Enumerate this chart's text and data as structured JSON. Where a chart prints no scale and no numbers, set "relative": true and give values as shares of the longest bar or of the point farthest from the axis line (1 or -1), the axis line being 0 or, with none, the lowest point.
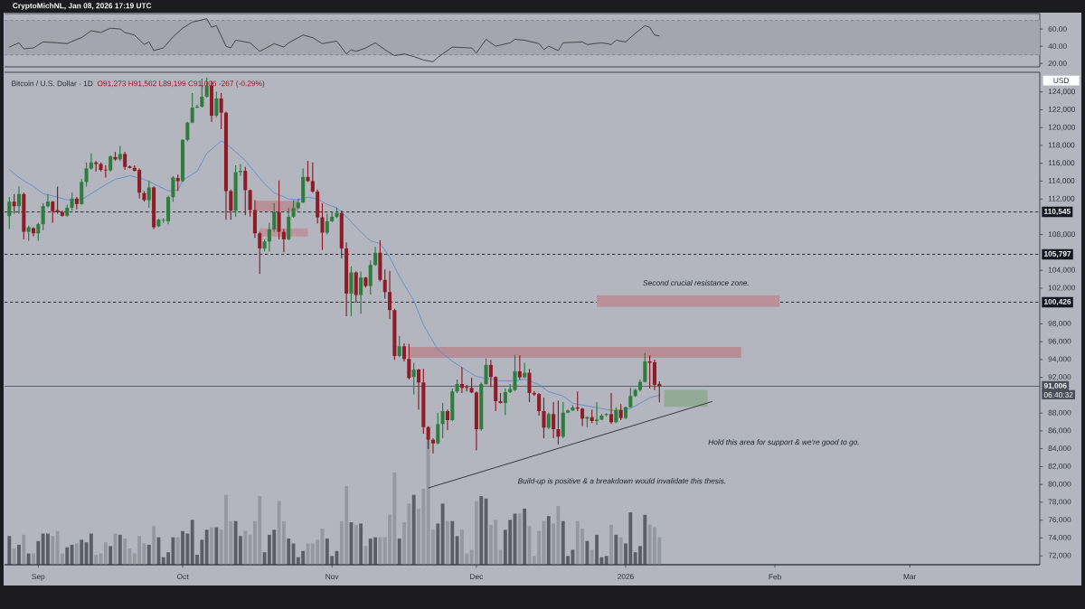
{
  "chart_data": [
    {
      "type": "line",
      "title": "CryptoMichNL, Jan 08, 2026 17:19 UTC",
      "x": [
        "2025-08-26",
        "2025-08-28",
        "2025-08-29",
        "2025-08-31",
        "2025-09-02",
        "2025-09-05",
        "2025-09-07",
        "2025-09-09",
        "2025-09-10",
        "2025-09-12",
        "2025-09-14",
        "2025-09-16",
        "2025-09-18",
        "2025-09-19",
        "2025-09-21",
        "2025-09-23",
        "2025-09-24",
        "2025-09-25",
        "2025-09-27",
        "2025-09-29",
        "2025-10-01",
        "2025-10-03",
        "2025-10-06",
        "2025-10-07",
        "2025-10-08",
        "2025-10-10",
        "2025-10-11",
        "2025-10-12",
        "2025-10-15",
        "2025-10-17",
        "2025-10-20",
        "2025-10-22",
        "2025-10-23",
        "2025-10-26",
        "2025-10-28",
        "2025-10-30",
        "2025-11-02",
        "2025-11-04",
        "2025-11-05",
        "2025-11-06",
        "2025-11-08",
        "2025-11-10",
        "2025-11-12",
        "2025-11-14",
        "2025-11-16",
        "2025-11-18",
        "2025-11-20",
        "2025-11-22",
        "2025-11-23",
        "2025-11-24",
        "2025-11-26",
        "2025-11-30",
        "2025-12-01",
        "2025-12-03",
        "2025-12-05",
        "2025-12-08",
        "2025-12-09",
        "2025-12-11",
        "2025-12-14",
        "2025-12-15",
        "2025-12-16",
        "2025-12-18",
        "2025-12-19",
        "2025-12-23",
        "2025-12-24",
        "2025-12-27",
        "2025-12-29",
        "2025-12-30",
        "2026-01-01",
        "2026-01-03",
        "2026-01-05",
        "2026-01-06",
        "2026-01-07",
        "2026-01-08"
      ],
      "values": [
        39,
        44,
        37,
        38,
        45,
        44,
        43,
        48,
        50,
        58,
        56,
        61,
        60,
        56,
        53,
        42,
        45,
        35,
        38,
        51,
        61,
        68,
        72,
        62,
        64,
        40,
        38,
        47,
        44,
        34,
        43,
        39,
        44,
        53,
        50,
        43,
        46,
        31,
        36,
        34,
        38,
        44,
        36,
        29,
        31,
        28,
        24,
        22,
        27,
        31,
        39,
        38,
        32,
        48,
        40,
        44,
        48,
        47,
        43,
        36,
        40,
        35,
        44,
        45,
        42,
        44,
        42,
        47,
        45,
        55,
        64,
        62,
        53,
        52
      ],
      "color": "#3b3d44",
      "xlim": [
        "2025-08-25",
        "2026-03-28"
      ],
      "ylim": [
        16,
        78
      ],
      "yticks": [
        {
          "value": 20,
          "label": "20.00"
        },
        {
          "value": 40,
          "label": "40.00"
        },
        {
          "value": 60,
          "label": "60.00"
        }
      ],
      "tick_labels": "y",
      "bands": [
        {
          "axis": "y",
          "from": 30,
          "to": 70,
          "color": "#a3a6ae"
        }
      ],
      "ref_lines": [
        {
          "axis": "y",
          "value": 70,
          "color": "#7d808a",
          "line_style": "dashed"
        },
        {
          "axis": "y",
          "value": 30,
          "color": "#7d808a",
          "line_style": "dashed"
        }
      ]
    },
    {
      "type": "candlestick",
      "title": "Bitcoin / U.S. Dollar · 1D",
      "subtitle": "O91,273 H91,562 L89,199 C91,006 -267 (-0.29%)",
      "ylabel": "USD",
      "x": [
        "2025-08-26",
        "2025-08-27",
        "2025-08-28",
        "2025-08-29",
        "2025-08-30",
        "2025-08-31",
        "2025-09-01",
        "2025-09-02",
        "2025-09-03",
        "2025-09-04",
        "2025-09-05",
        "2025-09-06",
        "2025-09-07",
        "2025-09-08",
        "2025-09-09",
        "2025-09-10",
        "2025-09-11",
        "2025-09-12",
        "2025-09-13",
        "2025-09-14",
        "2025-09-15",
        "2025-09-16",
        "2025-09-17",
        "2025-09-18",
        "2025-09-19",
        "2025-09-20",
        "2025-09-21",
        "2025-09-22",
        "2025-09-23",
        "2025-09-24",
        "2025-09-25",
        "2025-09-26",
        "2025-09-27",
        "2025-09-28",
        "2025-09-29",
        "2025-09-30",
        "2025-10-01",
        "2025-10-02",
        "2025-10-03",
        "2025-10-04",
        "2025-10-05",
        "2025-10-06",
        "2025-10-07",
        "2025-10-08",
        "2025-10-09",
        "2025-10-10",
        "2025-10-11",
        "2025-10-12",
        "2025-10-13",
        "2025-10-14",
        "2025-10-15",
        "2025-10-16",
        "2025-10-17",
        "2025-10-18",
        "2025-10-19",
        "2025-10-20",
        "2025-10-21",
        "2025-10-22",
        "2025-10-23",
        "2025-10-24",
        "2025-10-25",
        "2025-10-26",
        "2025-10-27",
        "2025-10-28",
        "2025-10-29",
        "2025-10-30",
        "2025-10-31",
        "2025-11-01",
        "2025-11-02",
        "2025-11-03",
        "2025-11-04",
        "2025-11-05",
        "2025-11-06",
        "2025-11-07",
        "2025-11-08",
        "2025-11-09",
        "2025-11-10",
        "2025-11-11",
        "2025-11-12",
        "2025-11-13",
        "2025-11-14",
        "2025-11-15",
        "2025-11-16",
        "2025-11-17",
        "2025-11-18",
        "2025-11-19",
        "2025-11-20",
        "2025-11-21",
        "2025-11-22",
        "2025-11-23",
        "2025-11-24",
        "2025-11-25",
        "2025-11-26",
        "2025-11-27",
        "2025-11-28",
        "2025-11-29",
        "2025-11-30",
        "2025-12-01",
        "2025-12-02",
        "2025-12-03",
        "2025-12-04",
        "2025-12-05",
        "2025-12-06",
        "2025-12-07",
        "2025-12-08",
        "2025-12-09",
        "2025-12-10",
        "2025-12-11",
        "2025-12-12",
        "2025-12-13",
        "2025-12-14",
        "2025-12-15",
        "2025-12-16",
        "2025-12-17",
        "2025-12-18",
        "2025-12-19",
        "2025-12-20",
        "2025-12-21",
        "2025-12-22",
        "2025-12-23",
        "2025-12-24",
        "2025-12-25",
        "2025-12-26",
        "2025-12-27",
        "2025-12-28",
        "2025-12-29",
        "2025-12-30",
        "2025-12-31",
        "2026-01-01",
        "2026-01-02",
        "2026-01-03",
        "2026-01-04",
        "2026-01-05",
        "2026-01-06",
        "2026-01-07",
        "2026-01-08"
      ],
      "ohlc": [
        [
          110080,
          112210,
          108660,
          111700
        ],
        [
          111700,
          112550,
          110350,
          111190
        ],
        [
          111190,
          113390,
          110350,
          112550
        ],
        [
          112550,
          112700,
          107480,
          108320
        ],
        [
          108320,
          109000,
          107310,
          108830
        ],
        [
          108730,
          108830,
          107810,
          108150
        ],
        [
          108150,
          109340,
          107310,
          109170
        ],
        [
          109170,
          111530,
          108490,
          111190
        ],
        [
          111190,
          112550,
          111020,
          111700
        ],
        [
          111700,
          111800,
          109340,
          110620
        ],
        [
          110750,
          113390,
          110350,
          110520
        ],
        [
          110520,
          110690,
          110010,
          110110
        ],
        [
          110110,
          111360,
          110010,
          111020
        ],
        [
          111020,
          112710,
          110690,
          112040
        ],
        [
          112040,
          112210,
          110860,
          111430
        ],
        [
          111430,
          114240,
          111360,
          113900
        ],
        [
          113900,
          116090,
          113390,
          115420
        ],
        [
          115420,
          117110,
          115250,
          116090
        ],
        [
          116090,
          116260,
          115080,
          115920
        ],
        [
          115920,
          116090,
          115080,
          115250
        ],
        [
          115280,
          115760,
          114400,
          115210
        ],
        [
          115210,
          116900,
          115080,
          116770
        ],
        [
          116700,
          117280,
          116260,
          116430
        ],
        [
          116430,
          117950,
          116260,
          117040
        ],
        [
          117040,
          117280,
          115250,
          115590
        ],
        [
          115650,
          115760,
          115420,
          115490
        ],
        [
          115490,
          115760,
          115080,
          115150
        ],
        [
          115250,
          115420,
          112040,
          112710
        ],
        [
          112650,
          112880,
          111700,
          111870
        ],
        [
          111870,
          114070,
          111020,
          113290
        ],
        [
          113290,
          113400,
          108590,
          108830
        ],
        [
          108930,
          109800,
          108830,
          109670
        ],
        [
          109610,
          109840,
          109340,
          109670
        ],
        [
          109500,
          112380,
          109170,
          112210
        ],
        [
          112210,
          114570,
          111700,
          114400
        ],
        [
          114340,
          114740,
          112880,
          114000
        ],
        [
          114000,
          118700,
          113900,
          118630
        ],
        [
          118630,
          120650,
          118460,
          120550
        ],
        [
          120550,
          123870,
          120490,
          122240
        ],
        [
          122240,
          122580,
          122180,
          122340
        ],
        [
          122340,
          125490,
          122240,
          123460
        ],
        [
          123460,
          125620,
          123360,
          124710
        ],
        [
          124710,
          125220,
          120650,
          121330
        ],
        [
          121330,
          124030,
          121160,
          123260
        ],
        [
          123260,
          123870,
          119810,
          121670
        ],
        [
          121670,
          121800,
          109670,
          112880
        ],
        [
          112880,
          113050,
          109670,
          110690
        ],
        [
          110690,
          115760,
          110010,
          115010
        ],
        [
          115010,
          115930,
          114570,
          115150
        ],
        [
          115150,
          115590,
          110180,
          112990
        ],
        [
          112990,
          113050,
          110010,
          110760
        ],
        [
          110760,
          111870,
          107650,
          108150
        ],
        [
          108150,
          108320,
          103590,
          106460
        ],
        [
          106460,
          107480,
          106130,
          107240
        ],
        [
          107240,
          109340,
          106130,
          108590
        ],
        [
          108590,
          111530,
          108320,
          110520
        ],
        [
          110520,
          114070,
          107480,
          108320
        ],
        [
          108320,
          108660,
          106020,
          107480
        ],
        [
          107480,
          111030,
          107380,
          110010
        ],
        [
          110010,
          111870,
          109900,
          110960
        ],
        [
          110960,
          112040,
          110860,
          111600
        ],
        [
          111600,
          115420,
          111530,
          114470
        ],
        [
          114470,
          116260,
          113900,
          114000
        ],
        [
          114000,
          116090,
          112710,
          112820
        ],
        [
          112820,
          113050,
          109270,
          109940
        ],
        [
          109940,
          111530,
          106290,
          108220
        ],
        [
          108220,
          110350,
          108050,
          109500
        ],
        [
          109500,
          110520,
          109400,
          110010
        ],
        [
          110010,
          111030,
          109840,
          110420
        ],
        [
          110420,
          110690,
          105350,
          106460
        ],
        [
          106460,
          107140,
          98860,
          101400
        ],
        [
          101400,
          104440,
          98860,
          103760
        ],
        [
          103760,
          103900,
          100380,
          101230
        ],
        [
          101230,
          103860,
          99130,
          103190
        ],
        [
          103190,
          103260,
          102070,
          102240
        ],
        [
          102240,
          105110,
          101290,
          104600
        ],
        [
          104600,
          106630,
          104500,
          105960
        ],
        [
          105960,
          107380,
          102750,
          102920
        ],
        [
          102920,
          104100,
          100820,
          101560
        ],
        [
          101560,
          103930,
          98520,
          99540
        ],
        [
          99540,
          99700,
          93960,
          94400
        ],
        [
          94400,
          96660,
          94300,
          95480
        ],
        [
          95480,
          95820,
          93790,
          94060
        ],
        [
          94060,
          95750,
          91770,
          91930
        ],
        [
          92040,
          93630,
          90080,
          92880
        ],
        [
          92880,
          92950,
          88390,
          91430
        ],
        [
          91430,
          92950,
          85680,
          86430
        ],
        [
          86430,
          86530,
          84000,
          85010
        ],
        [
          85010,
          85180,
          83490,
          84600
        ],
        [
          84600,
          88050,
          84500,
          86770
        ],
        [
          86770,
          89130,
          85180,
          88220
        ],
        [
          88220,
          88390,
          86090,
          87210
        ],
        [
          87210,
          90750,
          87100,
          90420
        ],
        [
          90420,
          91770,
          90250,
          91260
        ],
        [
          91260,
          93120,
          90250,
          90820
        ],
        [
          90920,
          91160,
          90420,
          90820
        ],
        [
          90820,
          91940,
          90250,
          90310
        ],
        [
          90310,
          90420,
          83830,
          86190
        ],
        [
          86190,
          91430,
          86020,
          91260
        ],
        [
          91260,
          94130,
          91160,
          93390
        ],
        [
          93390,
          93960,
          90920,
          92040
        ],
        [
          92040,
          92110,
          88220,
          89330
        ],
        [
          89330,
          90250,
          89060,
          89130
        ],
        [
          89130,
          90750,
          87780,
          90350
        ],
        [
          90350,
          91260,
          90250,
          90690
        ],
        [
          90580,
          94540,
          90480,
          92680
        ],
        [
          92680,
          94470,
          91770,
          92000
        ],
        [
          92000,
          93630,
          91940,
          92510
        ],
        [
          92510,
          92950,
          89230,
          90250
        ],
        [
          90250,
          90480,
          89910,
          90080
        ],
        [
          90140,
          90250,
          87710,
          88220
        ],
        [
          88220,
          89740,
          85180,
          86360
        ],
        [
          86360,
          88050,
          86190,
          87880
        ],
        [
          87880,
          89230,
          85180,
          86190
        ],
        [
          86190,
          89400,
          84500,
          85350
        ],
        [
          85350,
          89230,
          85180,
          88050
        ],
        [
          88050,
          88390,
          87980,
          88290
        ],
        [
          88290,
          88890,
          88220,
          88620
        ],
        [
          88620,
          90420,
          88220,
          88490
        ],
        [
          88490,
          88560,
          86530,
          87370
        ],
        [
          87370,
          87640,
          86430,
          87540
        ],
        [
          87540,
          88390,
          86870,
          87100
        ],
        [
          87100,
          89230,
          86700,
          87270
        ],
        [
          87270,
          87880,
          87200,
          87710
        ],
        [
          87780,
          87980,
          87640,
          87880
        ],
        [
          87880,
          90250,
          86770,
          86970
        ],
        [
          86970,
          88660,
          86870,
          88320
        ],
        [
          88320,
          89000,
          87210,
          87440
        ],
        [
          87440,
          88730,
          87310,
          88660
        ],
        [
          88660,
          90820,
          88560,
          89910
        ],
        [
          89910,
          90750,
          89810,
          90580
        ],
        [
          90580,
          91770,
          90420,
          91500
        ],
        [
          91500,
          94740,
          91430,
          93790
        ],
        [
          93790,
          94470,
          90750,
          93630
        ],
        [
          93690,
          94000,
          90580,
          91160
        ],
        [
          91273,
          91562,
          89199,
          91006
        ]
      ],
      "colors": [
        "#2e7d3e",
        "#8e1b25",
        "#2e7d3e",
        "#8e1b25",
        "#2e7d3e",
        "#8e1b25",
        "#2e7d3e",
        "#2e7d3e",
        "#2e7d3e",
        "#8e1b25",
        "#8e1b25",
        "#8e1b25",
        "#2e7d3e",
        "#2e7d3e",
        "#8e1b25",
        "#2e7d3e",
        "#2e7d3e",
        "#2e7d3e",
        "#8e1b25",
        "#8e1b25",
        "#8e1b25",
        "#2e7d3e",
        "#8e1b25",
        "#2e7d3e",
        "#8e1b25",
        "#8e1b25",
        "#8e1b25",
        "#8e1b25",
        "#8e1b25",
        "#2e7d3e",
        "#8e1b25",
        "#2e7d3e",
        "#2e7d3e",
        "#2e7d3e",
        "#2e7d3e",
        "#8e1b25",
        "#2e7d3e",
        "#2e7d3e",
        "#2e7d3e",
        "#2e7d3e",
        "#2e7d3e",
        "#2e7d3e",
        "#8e1b25",
        "#2e7d3e",
        "#8e1b25",
        "#8e1b25",
        "#8e1b25",
        "#2e7d3e",
        "#2e7d3e",
        "#8e1b25",
        "#8e1b25",
        "#8e1b25",
        "#8e1b25",
        "#2e7d3e",
        "#2e7d3e",
        "#2e7d3e",
        "#8e1b25",
        "#8e1b25",
        "#2e7d3e",
        "#2e7d3e",
        "#2e7d3e",
        "#2e7d3e",
        "#8e1b25",
        "#8e1b25",
        "#8e1b25",
        "#8e1b25",
        "#2e7d3e",
        "#2e7d3e",
        "#2e7d3e",
        "#8e1b25",
        "#8e1b25",
        "#2e7d3e",
        "#8e1b25",
        "#2e7d3e",
        "#8e1b25",
        "#2e7d3e",
        "#2e7d3e",
        "#8e1b25",
        "#8e1b25",
        "#8e1b25",
        "#8e1b25",
        "#2e7d3e",
        "#8e1b25",
        "#8e1b25",
        "#2e7d3e",
        "#8e1b25",
        "#8e1b25",
        "#8e1b25",
        "#8e1b25",
        "#2e7d3e",
        "#2e7d3e",
        "#8e1b25",
        "#2e7d3e",
        "#2e7d3e",
        "#8e1b25",
        "#8e1b25",
        "#8e1b25",
        "#8e1b25",
        "#2e7d3e",
        "#2e7d3e",
        "#8e1b25",
        "#8e1b25",
        "#8e1b25",
        "#2e7d3e",
        "#2e7d3e",
        "#2e7d3e",
        "#8e1b25",
        "#2e7d3e",
        "#8e1b25",
        "#8e1b25",
        "#8e1b25",
        "#8e1b25",
        "#2e7d3e",
        "#8e1b25",
        "#8e1b25",
        "#2e7d3e",
        "#2e7d3e",
        "#2e7d3e",
        "#8e1b25",
        "#8e1b25",
        "#2e7d3e",
        "#8e1b25",
        "#2e7d3e",
        "#2e7d3e",
        "#2e7d3e",
        "#8e1b25",
        "#2e7d3e",
        "#8e1b25",
        "#2e7d3e",
        "#2e7d3e",
        "#2e7d3e",
        "#2e7d3e",
        "#2e7d3e",
        "#8e1b25",
        "#8e1b25",
        "#8e1b25"
      ],
      "series": [
        {
          "type": "line",
          "color": "#b89098",
          "x": [
            "2025-10-16",
            "2025-10-25"
          ],
          "values": [
            null,
            null
          ],
          "lower": [
            110600,
            110600
          ],
          "upper": [
            111800,
            111800
          ]
        },
        {
          "type": "line",
          "color": "#bc949b",
          "x": [
            "2025-10-17",
            "2025-10-27"
          ],
          "values": [
            null,
            null
          ],
          "lower": [
            107800,
            107800
          ],
          "upper": [
            108700,
            108700
          ]
        },
        {
          "type": "line",
          "color": "#b68e96",
          "x": [
            "2025-11-17",
            "2026-01-25"
          ],
          "values": [
            null,
            null
          ],
          "lower": [
            94200,
            94200
          ],
          "upper": [
            95400,
            95400
          ]
        },
        {
          "type": "line",
          "color": "#ba9199",
          "x": [
            "2025-12-26",
            "2026-02-02"
          ],
          "values": [
            null,
            null
          ],
          "lower": [
            99900,
            99900
          ],
          "upper": [
            101200,
            101200
          ]
        },
        {
          "type": "line",
          "color": "#93ab96",
          "x": [
            "2026-01-09",
            "2026-01-18"
          ],
          "values": [
            null,
            null
          ],
          "lower": [
            88700,
            88700
          ],
          "upper": [
            90600,
            90600
          ]
        },
        {
          "type": "line",
          "color": "#5f8dd3",
          "x": [
            "2025-08-26",
            "2025-08-28",
            "2025-08-31",
            "2025-09-02",
            "2025-09-05",
            "2025-09-07",
            "2025-09-10",
            "2025-09-12",
            "2025-09-15",
            "2025-09-17",
            "2025-09-20",
            "2025-09-23",
            "2025-09-25",
            "2025-09-28",
            "2025-09-30",
            "2025-10-01",
            "2025-10-04",
            "2025-10-06",
            "2025-10-09",
            "2025-10-10",
            "2025-10-12",
            "2025-10-14",
            "2025-10-18",
            "2025-10-20",
            "2025-10-23",
            "2025-10-25",
            "2025-10-27",
            "2025-10-29",
            "2025-10-31",
            "2025-11-02",
            "2025-11-04",
            "2025-11-07",
            "2025-11-09",
            "2025-11-11",
            "2025-11-13",
            "2025-11-15",
            "2025-11-18",
            "2025-11-20",
            "2025-11-23",
            "2025-11-26",
            "2025-11-28",
            "2025-12-01",
            "2025-12-04",
            "2025-12-06",
            "2025-12-09",
            "2025-12-11",
            "2025-12-14",
            "2025-12-16",
            "2025-12-19",
            "2025-12-21",
            "2025-12-24",
            "2025-12-26",
            "2025-12-29",
            "2025-12-31",
            "2026-01-02",
            "2026-01-04",
            "2026-01-06",
            "2026-01-08"
          ],
          "values": [
            115300,
            114400,
            113400,
            112600,
            112200,
            111900,
            111900,
            112600,
            113600,
            114200,
            114600,
            114200,
            113700,
            112900,
            113000,
            114100,
            115100,
            117100,
            118500,
            118200,
            117300,
            116300,
            113700,
            112700,
            112000,
            111900,
            112200,
            112000,
            111400,
            111000,
            110000,
            108300,
            107300,
            107000,
            105500,
            103300,
            100600,
            97900,
            95100,
            93800,
            93100,
            92100,
            91800,
            91600,
            91600,
            91800,
            91200,
            90400,
            89900,
            89100,
            88800,
            88600,
            88300,
            88400,
            88500,
            89100,
            89700,
            90000
          ]
        },
        {
          "type": "line",
          "color": "#2a2e39",
          "x": [
            "2025-11-21",
            "2026-01-19"
          ],
          "values": [
            79600,
            89300
          ]
        }
      ],
      "xlim": [
        "2025-08-25",
        "2026-03-28"
      ],
      "ylim": [
        71000,
        126200
      ],
      "xticks": [
        {
          "value": "2025-09-01",
          "label": "Sep"
        },
        {
          "value": "2025-10-01",
          "label": "Oct"
        },
        {
          "value": "2025-11-01",
          "label": "Nov"
        },
        {
          "value": "2025-12-01",
          "label": "Dec"
        },
        {
          "value": "2026-01-01",
          "label": "2026"
        },
        {
          "value": "2026-02-01",
          "label": "Feb"
        },
        {
          "value": "2026-03-01",
          "label": "Mar"
        }
      ],
      "yticks": [
        {
          "value": 72000,
          "label": "72,000"
        },
        {
          "value": 74000,
          "label": "74,000"
        },
        {
          "value": 76000,
          "label": "76,000"
        },
        {
          "value": 78000,
          "label": "78,000"
        },
        {
          "value": 80000,
          "label": "80,000"
        },
        {
          "value": 82000,
          "label": "82,000"
        },
        {
          "value": 84000,
          "label": "84,000"
        },
        {
          "value": 86000,
          "label": "86,000"
        },
        {
          "value": 88000,
          "label": "88,000"
        },
        {
          "value": 92000,
          "label": "92,000"
        },
        {
          "value": 94000,
          "label": "94,000"
        },
        {
          "value": 96000,
          "label": "96,000"
        },
        {
          "value": 98000,
          "label": "98,000"
        },
        {
          "value": 102000,
          "label": "102,000"
        },
        {
          "value": 104000,
          "label": "104,000"
        },
        {
          "value": 108000,
          "label": "108,000"
        },
        {
          "value": 112000,
          "label": "112,000"
        },
        {
          "value": 114000,
          "label": "114,000"
        },
        {
          "value": 116000,
          "label": "116,000"
        },
        {
          "value": 118000,
          "label": "118,000"
        },
        {
          "value": 120000,
          "label": "120,000"
        },
        {
          "value": 122000,
          "label": "122,000"
        },
        {
          "value": 124000,
          "label": "124,000"
        }
      ],
      "ref_lines": [
        {
          "axis": "y",
          "value": 110545,
          "label": "110,545",
          "color": "#131722",
          "line_style": "dashed"
        },
        {
          "axis": "y",
          "value": 105797,
          "label": "105,797",
          "color": "#131722",
          "line_style": "dashed"
        },
        {
          "axis": "y",
          "value": 100426,
          "label": "100,426",
          "color": "#131722",
          "line_style": "dashed"
        },
        {
          "axis": "y",
          "value": 91006,
          "label": "91,006",
          "color": "#4a4e59",
          "line_style": "solid"
        }
      ],
      "annotations": [
        "Second crucial resistance zone.",
        "Hold this area for support & we're good to go.",
        "Build-up is positive & a breakdown would invalidate this thesis.",
        "06:40:32"
      ]
    },
    {
      "type": "bar",
      "relative": true,
      "tick_labels": false,
      "x": [
        "2025-08-26",
        "2025-08-27",
        "2025-08-28",
        "2025-08-29",
        "2025-08-30",
        "2025-08-31",
        "2025-09-01",
        "2025-09-02",
        "2025-09-03",
        "2025-09-04",
        "2025-09-05",
        "2025-09-06",
        "2025-09-07",
        "2025-09-08",
        "2025-09-09",
        "2025-09-10",
        "2025-09-11",
        "2025-09-12",
        "2025-09-13",
        "2025-09-14",
        "2025-09-15",
        "2025-09-16",
        "2025-09-17",
        "2025-09-18",
        "2025-09-19",
        "2025-09-20",
        "2025-09-21",
        "2025-09-22",
        "2025-09-23",
        "2025-09-24",
        "2025-09-25",
        "2025-09-26",
        "2025-09-27",
        "2025-09-28",
        "2025-09-29",
        "2025-09-30",
        "2025-10-01",
        "2025-10-02",
        "2025-10-03",
        "2025-10-04",
        "2025-10-05",
        "2025-10-06",
        "2025-10-07",
        "2025-10-08",
        "2025-10-09",
        "2025-10-10",
        "2025-10-11",
        "2025-10-12",
        "2025-10-13",
        "2025-10-14",
        "2025-10-15",
        "2025-10-16",
        "2025-10-17",
        "2025-10-18",
        "2025-10-19",
        "2025-10-20",
        "2025-10-21",
        "2025-10-22",
        "2025-10-23",
        "2025-10-24",
        "2025-10-25",
        "2025-10-26",
        "2025-10-27",
        "2025-10-28",
        "2025-10-29",
        "2025-10-30",
        "2025-10-31",
        "2025-11-01",
        "2025-11-02",
        "2025-11-03",
        "2025-11-04",
        "2025-11-05",
        "2025-11-06",
        "2025-11-07",
        "2025-11-08",
        "2025-11-09",
        "2025-11-10",
        "2025-11-11",
        "2025-11-12",
        "2025-11-13",
        "2025-11-14",
        "2025-11-15",
        "2025-11-16",
        "2025-11-17",
        "2025-11-18",
        "2025-11-19",
        "2025-11-20",
        "2025-11-21",
        "2025-11-22",
        "2025-11-23",
        "2025-11-24",
        "2025-11-25",
        "2025-11-26",
        "2025-11-27",
        "2025-11-28",
        "2025-11-29",
        "2025-11-30",
        "2025-12-01",
        "2025-12-02",
        "2025-12-03",
        "2025-12-04",
        "2025-12-05",
        "2025-12-06",
        "2025-12-07",
        "2025-12-08",
        "2025-12-09",
        "2025-12-10",
        "2025-12-11",
        "2025-12-12",
        "2025-12-13",
        "2025-12-14",
        "2025-12-15",
        "2025-12-16",
        "2025-12-17",
        "2025-12-18",
        "2025-12-19",
        "2025-12-20",
        "2025-12-21",
        "2025-12-22",
        "2025-12-23",
        "2025-12-24",
        "2025-12-25",
        "2025-12-26",
        "2025-12-27",
        "2025-12-28",
        "2025-12-29",
        "2025-12-30",
        "2025-12-31",
        "2026-01-01",
        "2026-01-02",
        "2026-01-03",
        "2026-01-04",
        "2026-01-05",
        "2026-01-06",
        "2026-01-07",
        "2026-01-08"
      ],
      "values": [
        0.23,
        0.13,
        0.16,
        0.24,
        0.09,
        0.09,
        0.19,
        0.25,
        0.25,
        0.23,
        0.27,
        0.09,
        0.14,
        0.16,
        0.17,
        0.2,
        0.18,
        0.25,
        0.08,
        0.09,
        0.18,
        0.15,
        0.25,
        0.24,
        0.21,
        0.13,
        0.09,
        0.23,
        0.17,
        0.16,
        0.31,
        0.22,
        0.06,
        0.1,
        0.22,
        0.22,
        0.27,
        0.25,
        0.36,
        0.08,
        0.2,
        0.28,
        0.3,
        0.3,
        0.28,
        0.56,
        0.35,
        0.35,
        0.23,
        0.27,
        0.24,
        0.35,
        0.55,
        0.1,
        0.24,
        0.28,
        0.51,
        0.35,
        0.21,
        0.17,
        0.06,
        0.11,
        0.17,
        0.17,
        0.2,
        0.29,
        0.21,
        0.07,
        0.11,
        0.35,
        0.63,
        0.34,
        0.32,
        0.33,
        0.15,
        0.21,
        0.22,
        0.22,
        0.22,
        0.4,
        0.74,
        0.21,
        0.34,
        0.49,
        0.56,
        0.45,
        0.61,
        1,
        0.28,
        0.33,
        0.49,
        0.35,
        0.35,
        0.23,
        0.28,
        0.09,
        0.12,
        0.51,
        0.55,
        0.53,
        0.32,
        0.36,
        0.12,
        0.28,
        0.36,
        0.41,
        0.41,
        0.45,
        0.31,
        0.07,
        0.27,
        0.35,
        0.39,
        0.33,
        0.47,
        0.35,
        0.07,
        0.12,
        0.35,
        0.29,
        0.19,
        0.12,
        0.24,
        0.06,
        0.07,
        0.32,
        0.24,
        0.22,
        0.17,
        0.42,
        0.1,
        0.15,
        0.4,
        0.32,
        0.3,
        0.22
      ],
      "colors": [
        "#5b5e67",
        "#9598a1",
        "#5b5e67",
        "#9598a1",
        "#5b5e67",
        "#9598a1",
        "#5b5e67",
        "#5b5e67",
        "#5b5e67",
        "#9598a1",
        "#9598a1",
        "#9598a1",
        "#5b5e67",
        "#5b5e67",
        "#9598a1",
        "#5b5e67",
        "#5b5e67",
        "#5b5e67",
        "#9598a1",
        "#9598a1",
        "#9598a1",
        "#5b5e67",
        "#9598a1",
        "#5b5e67",
        "#9598a1",
        "#9598a1",
        "#9598a1",
        "#9598a1",
        "#9598a1",
        "#5b5e67",
        "#9598a1",
        "#5b5e67",
        "#5b5e67",
        "#5b5e67",
        "#5b5e67",
        "#9598a1",
        "#5b5e67",
        "#5b5e67",
        "#5b5e67",
        "#5b5e67",
        "#5b5e67",
        "#5b5e67",
        "#9598a1",
        "#5b5e67",
        "#9598a1",
        "#9598a1",
        "#9598a1",
        "#5b5e67",
        "#5b5e67",
        "#9598a1",
        "#9598a1",
        "#9598a1",
        "#9598a1",
        "#5b5e67",
        "#5b5e67",
        "#5b5e67",
        "#9598a1",
        "#9598a1",
        "#5b5e67",
        "#5b5e67",
        "#5b5e67",
        "#5b5e67",
        "#9598a1",
        "#9598a1",
        "#9598a1",
        "#9598a1",
        "#5b5e67",
        "#5b5e67",
        "#5b5e67",
        "#9598a1",
        "#9598a1",
        "#5b5e67",
        "#9598a1",
        "#5b5e67",
        "#9598a1",
        "#5b5e67",
        "#5b5e67",
        "#9598a1",
        "#9598a1",
        "#9598a1",
        "#9598a1",
        "#5b5e67",
        "#9598a1",
        "#9598a1",
        "#5b5e67",
        "#9598a1",
        "#9598a1",
        "#9598a1",
        "#9598a1",
        "#5b5e67",
        "#5b5e67",
        "#9598a1",
        "#5b5e67",
        "#5b5e67",
        "#9598a1",
        "#9598a1",
        "#9598a1",
        "#9598a1",
        "#5b5e67",
        "#5b5e67",
        "#9598a1",
        "#9598a1",
        "#9598a1",
        "#5b5e67",
        "#5b5e67",
        "#5b5e67",
        "#9598a1",
        "#5b5e67",
        "#9598a1",
        "#9598a1",
        "#9598a1",
        "#9598a1",
        "#5b5e67",
        "#9598a1",
        "#9598a1",
        "#5b5e67",
        "#5b5e67",
        "#5b5e67",
        "#9598a1",
        "#9598a1",
        "#5b5e67",
        "#9598a1",
        "#5b5e67",
        "#5b5e67",
        "#5b5e67",
        "#9598a1",
        "#5b5e67",
        "#9598a1",
        "#5b5e67",
        "#5b5e67",
        "#5b5e67",
        "#5b5e67",
        "#5b5e67",
        "#9598a1",
        "#9598a1",
        "#9598a1"
      ],
      "xlim": [
        "2025-08-25",
        "2026-03-28"
      ]
    }
  ]
}
